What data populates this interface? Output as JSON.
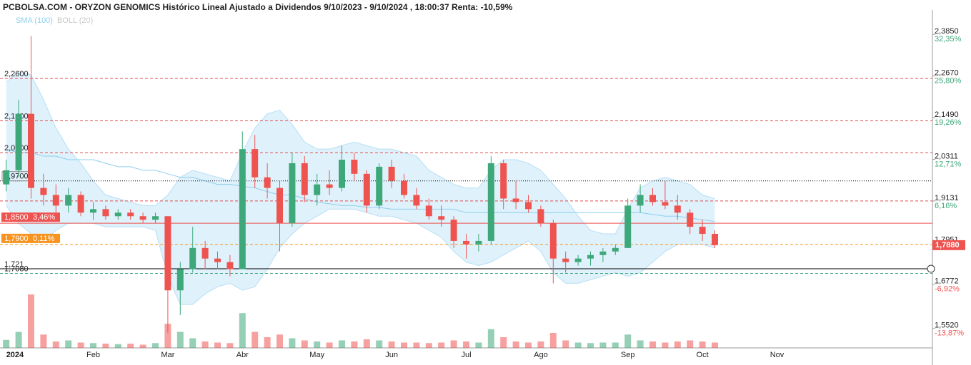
{
  "chart_data": {
    "type": "candlestick",
    "title": "PCBOLSA.COM - ORYZON GENOMICS Histórico Lineal Ajustado a Dividendos 9/10/2023 - 9/10/2024 , 18:00:37 Renta: -10,59%",
    "categories": [
      "2024",
      null,
      null,
      null,
      null,
      null,
      null,
      "Feb",
      null,
      null,
      null,
      null,
      null,
      "Mar",
      null,
      null,
      null,
      null,
      null,
      "Abr",
      null,
      null,
      null,
      null,
      null,
      "May",
      null,
      null,
      null,
      null,
      null,
      "Jun",
      null,
      null,
      null,
      null,
      null,
      "Jul",
      null,
      null,
      null,
      null,
      null,
      "Ago",
      null,
      null,
      null,
      null,
      null,
      null,
      "Sep",
      null,
      null,
      null,
      null,
      null,
      "Oct",
      null,
      null,
      null,
      null,
      null,
      "Nov"
    ],
    "open": [
      1.96,
      2.0,
      2.16,
      1.95,
      1.93,
      1.9,
      1.93,
      1.88,
      1.89,
      1.87,
      1.88,
      1.87,
      1.86,
      1.87,
      1.66,
      1.72,
      1.78,
      1.75,
      1.74,
      1.72,
      2.06,
      1.98,
      1.95,
      1.85,
      2.02,
      1.93,
      1.96,
      1.95,
      2.03,
      1.99,
      1.9,
      2.01,
      1.97,
      1.93,
      1.9,
      1.87,
      1.86,
      1.8,
      1.79,
      1.8,
      2.02,
      1.92,
      1.91,
      1.89,
      1.85,
      1.75,
      1.74,
      1.75,
      1.76,
      1.77,
      1.78,
      1.9,
      1.93,
      1.91,
      1.9,
      1.88,
      1.84,
      1.82,
      null,
      null,
      null,
      null,
      null
    ],
    "high": [
      2.03,
      2.2,
      2.38,
      1.99,
      1.96,
      1.95,
      1.94,
      1.91,
      1.9,
      1.89,
      1.89,
      1.88,
      1.88,
      1.87,
      1.74,
      1.84,
      1.8,
      1.77,
      1.76,
      2.11,
      2.1,
      2.02,
      1.97,
      2.05,
      2.04,
      1.99,
      2.0,
      2.07,
      2.05,
      2.0,
      2.02,
      2.03,
      1.99,
      1.95,
      1.92,
      1.9,
      1.87,
      1.82,
      1.82,
      2.04,
      2.03,
      1.97,
      1.93,
      1.9,
      1.86,
      1.77,
      1.76,
      1.77,
      1.78,
      1.79,
      1.92,
      1.96,
      1.95,
      1.97,
      1.93,
      1.89,
      1.86,
      1.83,
      null,
      null,
      null,
      null,
      null
    ],
    "low": [
      1.94,
      1.98,
      1.92,
      1.9,
      1.88,
      1.88,
      1.87,
      1.86,
      1.86,
      1.86,
      1.86,
      1.85,
      1.85,
      1.54,
      1.59,
      1.71,
      1.72,
      1.72,
      1.7,
      1.72,
      1.95,
      1.92,
      1.77,
      1.84,
      1.91,
      1.9,
      1.93,
      1.94,
      1.97,
      1.88,
      1.89,
      1.95,
      1.92,
      1.89,
      1.86,
      1.84,
      1.78,
      1.75,
      1.77,
      1.79,
      1.89,
      1.89,
      1.88,
      1.84,
      1.68,
      1.71,
      1.73,
      1.73,
      1.74,
      1.76,
      1.78,
      1.88,
      1.9,
      1.89,
      1.86,
      1.82,
      1.8,
      1.78,
      null,
      null,
      null,
      null,
      null
    ],
    "close": [
      2.0,
      2.16,
      1.95,
      1.93,
      1.9,
      1.93,
      1.88,
      1.89,
      1.87,
      1.88,
      1.87,
      1.86,
      1.87,
      1.66,
      1.72,
      1.78,
      1.75,
      1.74,
      1.72,
      2.06,
      1.98,
      1.95,
      1.85,
      2.02,
      1.93,
      1.96,
      1.95,
      2.03,
      1.99,
      1.9,
      2.01,
      1.97,
      1.93,
      1.9,
      1.87,
      1.86,
      1.8,
      1.79,
      1.8,
      2.02,
      1.92,
      1.91,
      1.89,
      1.85,
      1.75,
      1.74,
      1.75,
      1.76,
      1.77,
      1.78,
      1.9,
      1.93,
      1.91,
      1.9,
      1.88,
      1.84,
      1.82,
      1.788,
      null,
      null,
      null,
      null,
      null
    ],
    "volume": [
      15,
      30,
      100,
      25,
      12,
      14,
      10,
      9,
      8,
      7,
      8,
      6,
      9,
      45,
      30,
      18,
      12,
      10,
      9,
      65,
      30,
      20,
      25,
      18,
      14,
      12,
      10,
      14,
      12,
      16,
      14,
      12,
      10,
      10,
      9,
      10,
      14,
      12,
      10,
      35,
      20,
      12,
      10,
      12,
      28,
      14,
      10,
      9,
      10,
      10,
      25,
      14,
      12,
      10,
      12,
      14,
      12,
      10,
      null,
      null,
      null,
      null,
      null
    ],
    "volume_lim": [
      0,
      100
    ],
    "up_color": "#3ea87a",
    "down_color": "#ef5350",
    "indicators": [
      {
        "name": "SMA (100)",
        "color": "#8ecfee",
        "values": [
          2.06,
          2.05,
          2.05,
          2.04,
          2.04,
          2.03,
          2.03,
          2.03,
          2.02,
          2.01,
          2.01,
          2.0,
          2.0,
          1.99,
          1.98,
          1.98,
          1.97,
          1.96,
          1.96,
          1.955,
          1.95,
          1.94,
          1.93,
          1.93,
          1.92,
          1.91,
          1.905,
          1.9,
          1.9,
          1.895,
          1.895,
          1.89,
          1.89,
          1.89,
          1.89,
          1.89,
          1.89,
          1.88,
          1.88,
          1.88,
          1.88,
          1.88,
          1.88,
          1.88,
          1.88,
          1.88,
          1.88,
          1.88,
          1.88,
          1.88,
          1.88,
          1.88,
          1.875,
          1.87,
          1.87,
          1.865,
          1.86,
          1.855,
          null,
          null,
          null,
          null,
          null
        ]
      },
      {
        "name": "BOLL (20)",
        "color": "#c8c8c8",
        "fill": "#d4ecfa",
        "upper": [
          2.25,
          2.28,
          2.27,
          2.2,
          2.12,
          2.06,
          2.02,
          1.97,
          1.93,
          1.92,
          1.91,
          1.9,
          1.9,
          1.93,
          1.98,
          2.0,
          1.99,
          1.98,
          1.97,
          2.05,
          2.12,
          2.16,
          2.17,
          2.13,
          2.08,
          2.06,
          2.06,
          2.07,
          2.08,
          2.07,
          2.06,
          2.06,
          2.05,
          2.04,
          2.0,
          1.98,
          1.96,
          1.95,
          1.95,
          2.0,
          2.03,
          2.03,
          2.02,
          2.0,
          1.96,
          1.92,
          1.87,
          1.83,
          1.82,
          1.82,
          1.89,
          1.95,
          1.97,
          1.98,
          1.97,
          1.96,
          1.93,
          1.92,
          null,
          null,
          null,
          null,
          null
        ],
        "lower": [
          1.9,
          1.85,
          1.82,
          1.8,
          1.83,
          1.85,
          1.85,
          1.85,
          1.84,
          1.84,
          1.84,
          1.84,
          1.83,
          1.7,
          1.62,
          1.62,
          1.65,
          1.67,
          1.68,
          1.66,
          1.67,
          1.72,
          1.78,
          1.82,
          1.85,
          1.87,
          1.89,
          1.89,
          1.89,
          1.88,
          1.87,
          1.87,
          1.86,
          1.85,
          1.83,
          1.81,
          1.77,
          1.74,
          1.73,
          1.74,
          1.76,
          1.78,
          1.8,
          1.77,
          1.71,
          1.68,
          1.68,
          1.69,
          1.7,
          1.71,
          1.7,
          1.71,
          1.74,
          1.77,
          1.79,
          1.79,
          1.79,
          1.78,
          null,
          null,
          null,
          null,
          null
        ]
      }
    ],
    "ylim": [
      1.497,
      2.454
    ],
    "yticks": [
      {
        "value": 2.385,
        "label": "2,3850"
      },
      {
        "value": 2.267,
        "label": "2,2670"
      },
      {
        "value": 2.149,
        "label": "2,1490"
      },
      {
        "value": 2.0311,
        "label": "2,0311"
      },
      {
        "value": 1.9131,
        "label": "1,9131"
      },
      {
        "value": 1.7951,
        "label": "1,7951"
      },
      {
        "value": 1.6772,
        "label": "1,6772"
      },
      {
        "value": 1.552,
        "label": "1,5520"
      }
    ],
    "ytick_changes": [
      "32,35%",
      "25,80%",
      "19,26%",
      "12,71%",
      "6,16%",
      null,
      "-6,92%",
      "-13,87%"
    ],
    "last_price": {
      "value": 1.788,
      "label": "1,7880"
    },
    "levels": [
      {
        "value": 2.26,
        "label": "2,2600",
        "color": "#e05050",
        "style": "dashed"
      },
      {
        "value": 2.14,
        "label": "2,1400",
        "color": "#e05050",
        "style": "dashed"
      },
      {
        "value": 2.05,
        "label": "2,0500",
        "color": "#e05050",
        "style": "dashed"
      },
      {
        "value": 1.97,
        "label": "1,9700",
        "color": "#000000",
        "style": "dotted"
      },
      {
        "value": 1.9131,
        "color": "#e05050",
        "style": "dashed"
      },
      {
        "value": 1.85,
        "label": "1,8500",
        "tag": "3,46%",
        "color": "#ef5350",
        "style": "solid"
      },
      {
        "value": 1.79,
        "label": "1,7900",
        "tag": "0,11%",
        "color": "#f7931e",
        "style": "dashed"
      },
      {
        "value": 1.721,
        "label": "1,721",
        "color": "#000000",
        "style": "solid"
      },
      {
        "value": 1.708,
        "label": "1,7080",
        "color": "#3ea87a",
        "style": "dashed"
      }
    ]
  }
}
